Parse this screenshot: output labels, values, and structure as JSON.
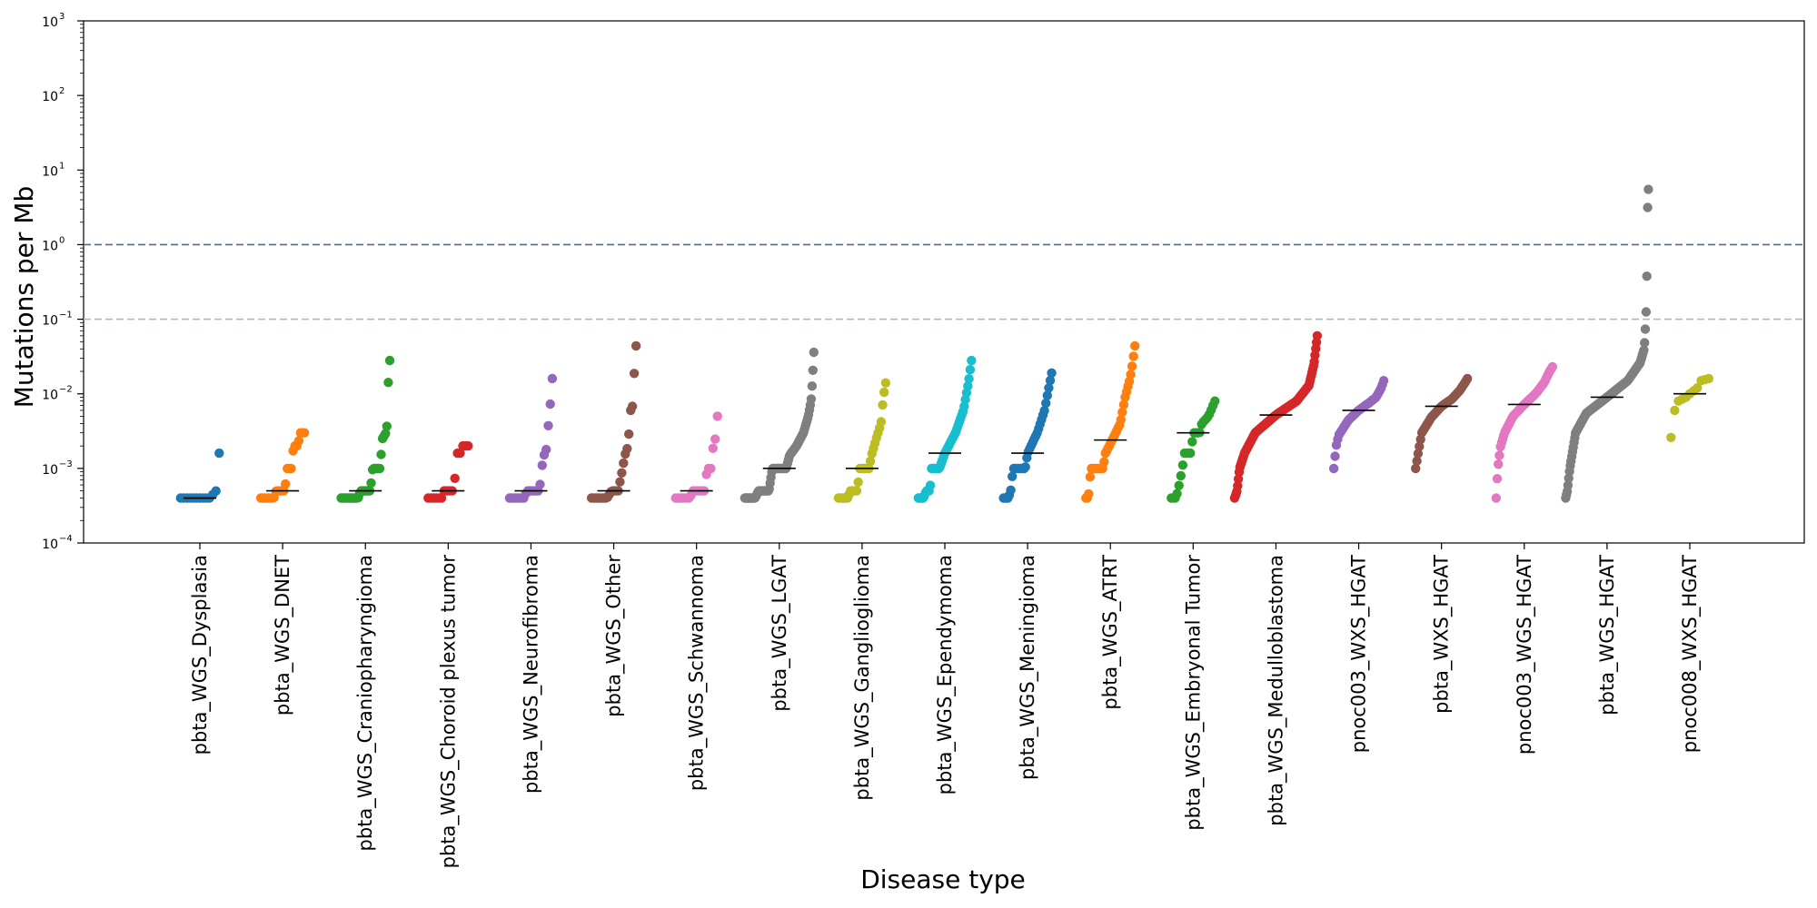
{
  "chart_data": {
    "type": "scatter",
    "title": "",
    "xlabel": "Disease type",
    "ylabel": "Mutations per Mb",
    "yscale": "log",
    "ylim": [
      0.0001,
      1000
    ],
    "yticks": [
      {
        "value": 0.0001,
        "base": "10",
        "exp": "−4"
      },
      {
        "value": 0.001,
        "base": "10",
        "exp": "−3"
      },
      {
        "value": 0.01,
        "base": "10",
        "exp": "−2"
      },
      {
        "value": 0.1,
        "base": "10",
        "exp": "−1"
      },
      {
        "value": 1,
        "base": "10",
        "exp": "0"
      },
      {
        "value": 10,
        "base": "10",
        "exp": "1"
      },
      {
        "value": 100,
        "base": "10",
        "exp": "2"
      },
      {
        "value": 1000,
        "base": "10",
        "exp": "3"
      }
    ],
    "reference_lines": [
      {
        "value": 1,
        "color": "#4a6f8f",
        "style": "dashed"
      },
      {
        "value": 0.1,
        "color": "#9dbdd0",
        "style": "dashed"
      }
    ],
    "groups": [
      {
        "name": "pbta_WGS_Dysplasia",
        "color": "#1f77b4",
        "median": 0.0004,
        "n": 13,
        "anchors": [
          [
            0,
            0.0004
          ],
          [
            0.75,
            0.0004
          ],
          [
            0.92,
            0.0005
          ],
          [
            1,
            0.0016
          ]
        ]
      },
      {
        "name": "pbta_WGS_DNET",
        "color": "#ff7f0e",
        "median": 0.0005,
        "n": 24,
        "anchors": [
          [
            0,
            0.0004
          ],
          [
            0.3,
            0.0004
          ],
          [
            0.35,
            0.0005
          ],
          [
            0.55,
            0.0005
          ],
          [
            0.6,
            0.001
          ],
          [
            0.7,
            0.001
          ],
          [
            0.75,
            0.002
          ],
          [
            0.85,
            0.002
          ],
          [
            0.9,
            0.003
          ],
          [
            1,
            0.003
          ]
        ]
      },
      {
        "name": "pbta_WGS_Craniopharyngioma",
        "color": "#2ca02c",
        "median": 0.0005,
        "n": 35,
        "anchors": [
          [
            0,
            0.0004
          ],
          [
            0.35,
            0.0004
          ],
          [
            0.4,
            0.0005
          ],
          [
            0.6,
            0.0005
          ],
          [
            0.65,
            0.001
          ],
          [
            0.8,
            0.001
          ],
          [
            0.85,
            0.0025
          ],
          [
            0.92,
            0.003
          ],
          [
            0.95,
            0.004
          ],
          [
            0.97,
            0.014
          ],
          [
            1,
            0.028
          ]
        ]
      },
      {
        "name": "pbta_WGS_Choroid plexus tumor",
        "color": "#d62728",
        "median": 0.0005,
        "n": 16,
        "anchors": [
          [
            0,
            0.0004
          ],
          [
            0.35,
            0.0004
          ],
          [
            0.4,
            0.0005
          ],
          [
            0.65,
            0.0005
          ],
          [
            0.7,
            0.0016
          ],
          [
            0.8,
            0.0016
          ],
          [
            0.85,
            0.002
          ],
          [
            1,
            0.002
          ]
        ]
      },
      {
        "name": "pbta_WGS_Neurofibroma",
        "color": "#9467bd",
        "median": 0.0005,
        "n": 22,
        "anchors": [
          [
            0,
            0.0004
          ],
          [
            0.35,
            0.0004
          ],
          [
            0.4,
            0.0005
          ],
          [
            0.7,
            0.0005
          ],
          [
            0.75,
            0.001
          ],
          [
            0.8,
            0.0015
          ],
          [
            0.85,
            0.0016
          ],
          [
            0.9,
            0.0035
          ],
          [
            0.95,
            0.007
          ],
          [
            1,
            0.016
          ]
        ]
      },
      {
        "name": "pbta_WGS_Other",
        "color": "#8c564b",
        "median": 0.0005,
        "n": 26,
        "anchors": [
          [
            0,
            0.0004
          ],
          [
            0.35,
            0.0004
          ],
          [
            0.45,
            0.0005
          ],
          [
            0.6,
            0.0005
          ],
          [
            0.7,
            0.001
          ],
          [
            0.75,
            0.0015
          ],
          [
            0.82,
            0.002
          ],
          [
            0.88,
            0.006
          ],
          [
            0.93,
            0.007
          ],
          [
            0.97,
            0.026
          ],
          [
            1,
            0.044
          ]
        ]
      },
      {
        "name": "pbta_WGS_Schwannoma",
        "color": "#e377c2",
        "median": 0.0005,
        "n": 20,
        "anchors": [
          [
            0,
            0.0004
          ],
          [
            0.35,
            0.0004
          ],
          [
            0.4,
            0.0005
          ],
          [
            0.7,
            0.0005
          ],
          [
            0.75,
            0.001
          ],
          [
            0.85,
            0.001
          ],
          [
            0.9,
            0.002
          ],
          [
            0.95,
            0.0025
          ],
          [
            1,
            0.005
          ]
        ]
      },
      {
        "name": "pbta_WGS_LGAT",
        "color": "#7f7f7f",
        "median": 0.001,
        "n": 80,
        "anchors": [
          [
            0,
            0.0004
          ],
          [
            0.15,
            0.0004
          ],
          [
            0.2,
            0.0005
          ],
          [
            0.35,
            0.0005
          ],
          [
            0.4,
            0.001
          ],
          [
            0.6,
            0.001
          ],
          [
            0.65,
            0.0015
          ],
          [
            0.75,
            0.002
          ],
          [
            0.85,
            0.003
          ],
          [
            0.92,
            0.005
          ],
          [
            0.96,
            0.008
          ],
          [
            0.98,
            0.015
          ],
          [
            1,
            0.036
          ]
        ]
      },
      {
        "name": "pbta_WGS_Ganglioglioma",
        "color": "#bcbd22",
        "median": 0.001,
        "n": 32,
        "anchors": [
          [
            0,
            0.0004
          ],
          [
            0.2,
            0.0004
          ],
          [
            0.25,
            0.0005
          ],
          [
            0.4,
            0.0005
          ],
          [
            0.45,
            0.001
          ],
          [
            0.65,
            0.001
          ],
          [
            0.7,
            0.0015
          ],
          [
            0.8,
            0.0025
          ],
          [
            0.9,
            0.004
          ],
          [
            0.95,
            0.009
          ],
          [
            1,
            0.014
          ]
        ]
      },
      {
        "name": "pbta_WGS_Ependymoma",
        "color": "#17becf",
        "median": 0.0016,
        "n": 45,
        "anchors": [
          [
            0,
            0.0004
          ],
          [
            0.1,
            0.0004
          ],
          [
            0.15,
            0.0005
          ],
          [
            0.22,
            0.0005
          ],
          [
            0.25,
            0.001
          ],
          [
            0.4,
            0.001
          ],
          [
            0.5,
            0.0016
          ],
          [
            0.7,
            0.003
          ],
          [
            0.85,
            0.006
          ],
          [
            0.95,
            0.015
          ],
          [
            1,
            0.028
          ]
        ]
      },
      {
        "name": "pbta_WGS_Meningioma",
        "color": "#1f77b4",
        "median": 0.0016,
        "n": 34,
        "anchors": [
          [
            0,
            0.0004
          ],
          [
            0.1,
            0.0004
          ],
          [
            0.15,
            0.0005
          ],
          [
            0.2,
            0.001
          ],
          [
            0.45,
            0.001
          ],
          [
            0.5,
            0.0016
          ],
          [
            0.7,
            0.003
          ],
          [
            0.85,
            0.006
          ],
          [
            0.95,
            0.013
          ],
          [
            1,
            0.019
          ]
        ]
      },
      {
        "name": "pbta_WGS_ATRT",
        "color": "#ff7f0e",
        "median": 0.0024,
        "n": 36,
        "anchors": [
          [
            0,
            0.0004
          ],
          [
            0.05,
            0.0004
          ],
          [
            0.1,
            0.001
          ],
          [
            0.35,
            0.001
          ],
          [
            0.4,
            0.0016
          ],
          [
            0.55,
            0.0025
          ],
          [
            0.7,
            0.004
          ],
          [
            0.8,
            0.009
          ],
          [
            0.9,
            0.016
          ],
          [
            0.95,
            0.025
          ],
          [
            1,
            0.044
          ]
        ]
      },
      {
        "name": "pbta_WGS_Embryonal Tumor",
        "color": "#2ca02c",
        "median": 0.003,
        "n": 24,
        "anchors": [
          [
            0,
            0.0004
          ],
          [
            0.1,
            0.0004
          ],
          [
            0.15,
            0.0005
          ],
          [
            0.25,
            0.001
          ],
          [
            0.3,
            0.0016
          ],
          [
            0.45,
            0.0016
          ],
          [
            0.5,
            0.003
          ],
          [
            0.65,
            0.003
          ],
          [
            0.7,
            0.004
          ],
          [
            0.85,
            0.005
          ],
          [
            1,
            0.008
          ]
        ]
      },
      {
        "name": "pbta_WGS_Medulloblastoma",
        "color": "#d62728",
        "median": 0.0052,
        "n": 110,
        "anchors": [
          [
            0,
            0.0004
          ],
          [
            0.03,
            0.0005
          ],
          [
            0.06,
            0.001
          ],
          [
            0.12,
            0.0016
          ],
          [
            0.25,
            0.003
          ],
          [
            0.5,
            0.0052
          ],
          [
            0.75,
            0.008
          ],
          [
            0.9,
            0.013
          ],
          [
            0.96,
            0.025
          ],
          [
            1,
            0.06
          ]
        ]
      },
      {
        "name": "pnoc003_WXS_HGAT",
        "color": "#9467bd",
        "median": 0.006,
        "n": 38,
        "anchors": [
          [
            0,
            0.001
          ],
          [
            0.05,
            0.002
          ],
          [
            0.1,
            0.0028
          ],
          [
            0.3,
            0.0045
          ],
          [
            0.5,
            0.006
          ],
          [
            0.7,
            0.0075
          ],
          [
            0.85,
            0.009
          ],
          [
            0.95,
            0.012
          ],
          [
            1,
            0.015
          ]
        ]
      },
      {
        "name": "pbta_WXS_HGAT",
        "color": "#8c564b",
        "median": 0.0068,
        "n": 42,
        "anchors": [
          [
            0,
            0.001
          ],
          [
            0.05,
            0.0016
          ],
          [
            0.12,
            0.003
          ],
          [
            0.3,
            0.0048
          ],
          [
            0.5,
            0.0068
          ],
          [
            0.7,
            0.0085
          ],
          [
            0.85,
            0.011
          ],
          [
            0.95,
            0.014
          ],
          [
            1,
            0.016
          ]
        ]
      },
      {
        "name": "pnoc003_WGS_HGAT",
        "color": "#e377c2",
        "median": 0.0072,
        "n": 52,
        "anchors": [
          [
            0,
            0.0004
          ],
          [
            0.03,
            0.001
          ],
          [
            0.08,
            0.002
          ],
          [
            0.15,
            0.003
          ],
          [
            0.3,
            0.005
          ],
          [
            0.5,
            0.0072
          ],
          [
            0.7,
            0.01
          ],
          [
            0.85,
            0.014
          ],
          [
            0.95,
            0.02
          ],
          [
            1,
            0.023
          ]
        ]
      },
      {
        "name": "pbta_WGS_HGAT",
        "color": "#7f7f7f",
        "median": 0.009,
        "n": 110,
        "anchors": [
          [
            0,
            0.0004
          ],
          [
            0.02,
            0.0005
          ],
          [
            0.05,
            0.001
          ],
          [
            0.12,
            0.003
          ],
          [
            0.25,
            0.0055
          ],
          [
            0.5,
            0.009
          ],
          [
            0.75,
            0.015
          ],
          [
            0.9,
            0.026
          ],
          [
            0.95,
            0.04
          ],
          [
            0.97,
            0.1
          ],
          [
            0.98,
            0.25
          ],
          [
            0.99,
            3
          ],
          [
            1,
            5.5
          ]
        ]
      },
      {
        "name": "pnoc008_WXS_HGAT",
        "color": "#bcbd22",
        "median": 0.01,
        "n": 11,
        "anchors": [
          [
            0,
            0.0026
          ],
          [
            0.1,
            0.006
          ],
          [
            0.2,
            0.008
          ],
          [
            0.4,
            0.009
          ],
          [
            0.5,
            0.01
          ],
          [
            0.7,
            0.012
          ],
          [
            0.8,
            0.015
          ],
          [
            1,
            0.016
          ]
        ]
      }
    ]
  }
}
